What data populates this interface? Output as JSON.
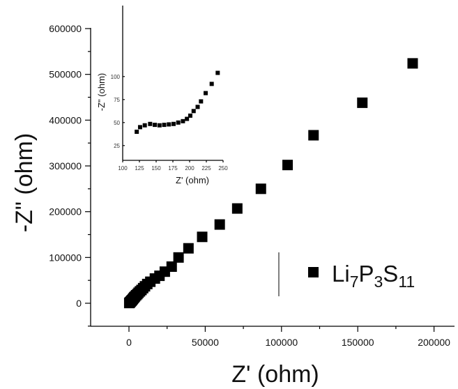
{
  "chart_data": [
    {
      "type": "scatter",
      "title": "",
      "xlabel": "Z' (ohm)",
      "ylabel": "-Z\" (ohm)",
      "xlim": [
        -15000,
        220000
      ],
      "ylim": [
        -50000,
        610000
      ],
      "x_ticks": [
        "0",
        "50000",
        "100000",
        "150000",
        "200000"
      ],
      "y_ticks": [
        "0",
        "100000",
        "200000",
        "300000",
        "400000",
        "500000",
        "600000"
      ],
      "grid": false,
      "legend_position": "bottom-right",
      "marker": "square",
      "series": [
        {
          "name": "Li7P3S11",
          "name_parts": {
            "base": "Li",
            "sub1": "7",
            "mid": "P",
            "sub2": "3",
            "end": "S",
            "sub3": "11"
          },
          "color": "#000000",
          "points": [
            [
              200,
              500
            ],
            [
              500,
              1500
            ],
            [
              800,
              2500
            ],
            [
              1200,
              4000
            ],
            [
              1600,
              5500
            ],
            [
              2000,
              7000
            ],
            [
              2500,
              9000
            ],
            [
              3000,
              11000
            ],
            [
              3500,
              13000
            ],
            [
              4000,
              15000
            ],
            [
              4700,
              17500
            ],
            [
              5500,
              20000
            ],
            [
              6300,
              23000
            ],
            [
              7200,
              26000
            ],
            [
              8200,
              29000
            ],
            [
              9300,
              33000
            ],
            [
              10500,
              37000
            ],
            [
              12000,
              42000
            ],
            [
              14000,
              47000
            ],
            [
              17000,
              54000
            ],
            [
              20000,
              60000
            ],
            [
              23500,
              69000
            ],
            [
              28000,
              80000
            ],
            [
              32500,
              100000
            ],
            [
              39000,
              120000
            ],
            [
              48000,
              145000
            ],
            [
              59500,
              172000
            ],
            [
              71000,
              207000
            ],
            [
              86500,
              250000
            ],
            [
              104000,
              302000
            ],
            [
              121000,
              367000
            ],
            [
              153000,
              438000
            ],
            [
              186000,
              524000
            ]
          ]
        }
      ]
    },
    {
      "type": "scatter",
      "title": "",
      "xlabel": "Z' (ohm)",
      "ylabel": "-Z\" (ohm)",
      "xlim": [
        100,
        250
      ],
      "ylim": [
        20,
        110
      ],
      "x_ticks": [
        "100",
        "125",
        "150",
        "175",
        "200",
        "225",
        "250"
      ],
      "y_ticks": [
        "25",
        "50",
        "75",
        "100"
      ],
      "grid": false,
      "marker": "square",
      "series": [
        {
          "color": "#000000",
          "points": [
            [
              121,
              40
            ],
            [
              126,
              45
            ],
            [
              133,
              47
            ],
            [
              141,
              48.5
            ],
            [
              148,
              47.5
            ],
            [
              155,
              47
            ],
            [
              162,
              47.5
            ],
            [
              169,
              48
            ],
            [
              176,
              48.5
            ],
            [
              183,
              50
            ],
            [
              190,
              51.5
            ],
            [
              196,
              54
            ],
            [
              201,
              57.5
            ],
            [
              206,
              62.5
            ],
            [
              212,
              67
            ],
            [
              217,
              73
            ],
            [
              224,
              82
            ],
            [
              233,
              92
            ],
            [
              242,
              104
            ]
          ]
        }
      ]
    }
  ]
}
